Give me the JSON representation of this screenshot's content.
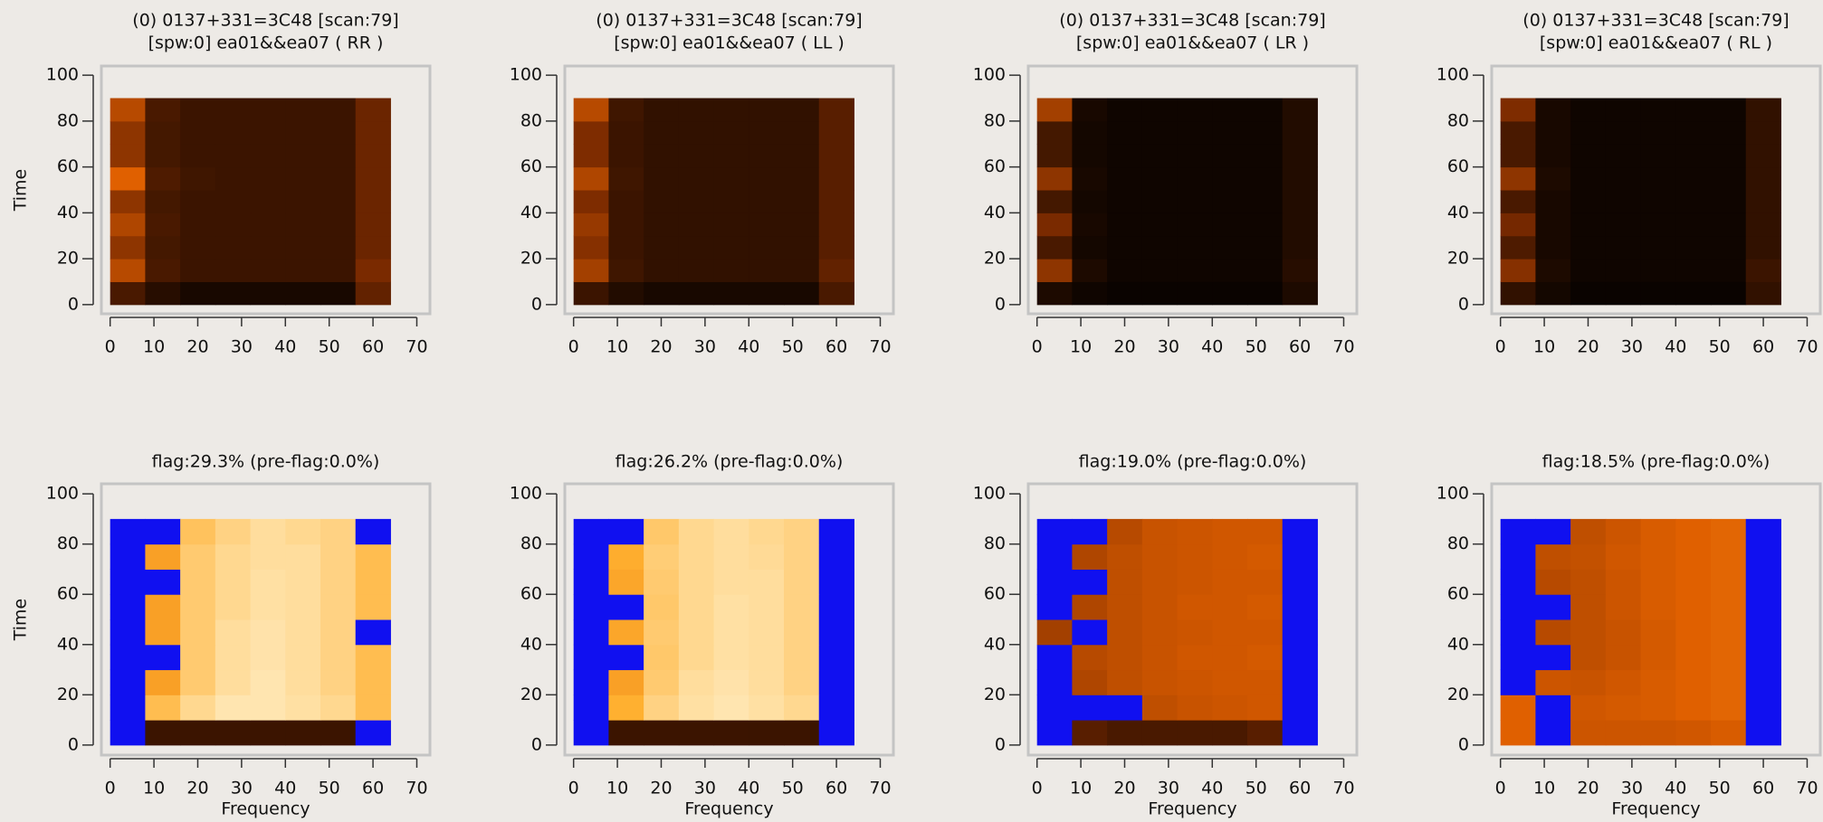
{
  "chart_data": [
    {
      "type": "heatmap",
      "title": "(0) 0137+331=3C48  [scan:79]",
      "subtitle": "[spw:0] ea01&&ea07  ( RR )",
      "ylabel": "Time",
      "xbins": [
        0,
        8,
        16,
        24,
        32,
        40,
        48,
        56,
        64
      ],
      "ybins": [
        0,
        10,
        20,
        30,
        40,
        50,
        60,
        70,
        80,
        90
      ],
      "z": [
        [
          0.15,
          0.08,
          0.05,
          0.05,
          0.05,
          0.05,
          0.05,
          0.2
        ],
        [
          0.4,
          0.15,
          0.12,
          0.12,
          0.12,
          0.12,
          0.12,
          0.25
        ],
        [
          0.3,
          0.14,
          0.12,
          0.12,
          0.12,
          0.12,
          0.12,
          0.22
        ],
        [
          0.38,
          0.15,
          0.12,
          0.12,
          0.12,
          0.12,
          0.12,
          0.22
        ],
        [
          0.3,
          0.14,
          0.12,
          0.12,
          0.12,
          0.12,
          0.12,
          0.22
        ],
        [
          0.5,
          0.16,
          0.13,
          0.12,
          0.12,
          0.12,
          0.12,
          0.22
        ],
        [
          0.3,
          0.14,
          0.12,
          0.12,
          0.12,
          0.12,
          0.12,
          0.22
        ],
        [
          0.3,
          0.14,
          0.12,
          0.12,
          0.12,
          0.12,
          0.12,
          0.22
        ],
        [
          0.4,
          0.15,
          0.12,
          0.12,
          0.12,
          0.12,
          0.12,
          0.22
        ]
      ],
      "xlim": [
        -2,
        73
      ],
      "ylim": [
        -4,
        104
      ],
      "xticks": [
        0,
        10,
        20,
        30,
        40,
        50,
        60,
        70
      ],
      "yticks": [
        0,
        20,
        40,
        60,
        80,
        100
      ]
    },
    {
      "type": "heatmap",
      "title": "(0) 0137+331=3C48  [scan:79]",
      "subtitle": "[spw:0] ea01&&ea07  ( LL )",
      "xbins": [
        0,
        8,
        16,
        24,
        32,
        40,
        48,
        56,
        64
      ],
      "ybins": [
        0,
        10,
        20,
        30,
        40,
        50,
        60,
        70,
        80,
        90
      ],
      "z": [
        [
          0.12,
          0.07,
          0.05,
          0.05,
          0.05,
          0.05,
          0.05,
          0.15
        ],
        [
          0.35,
          0.13,
          0.1,
          0.1,
          0.1,
          0.1,
          0.1,
          0.2
        ],
        [
          0.28,
          0.12,
          0.1,
          0.1,
          0.1,
          0.1,
          0.1,
          0.18
        ],
        [
          0.32,
          0.12,
          0.1,
          0.1,
          0.1,
          0.1,
          0.1,
          0.18
        ],
        [
          0.26,
          0.12,
          0.1,
          0.1,
          0.1,
          0.1,
          0.1,
          0.18
        ],
        [
          0.38,
          0.13,
          0.1,
          0.1,
          0.1,
          0.1,
          0.1,
          0.18
        ],
        [
          0.26,
          0.12,
          0.1,
          0.1,
          0.1,
          0.1,
          0.1,
          0.18
        ],
        [
          0.26,
          0.12,
          0.1,
          0.1,
          0.1,
          0.1,
          0.1,
          0.18
        ],
        [
          0.4,
          0.13,
          0.1,
          0.1,
          0.1,
          0.1,
          0.1,
          0.18
        ]
      ],
      "xlim": [
        -2,
        73
      ],
      "ylim": [
        -4,
        104
      ],
      "xticks": [
        0,
        10,
        20,
        30,
        40,
        50,
        60,
        70
      ],
      "yticks": [
        0,
        20,
        40,
        60,
        80,
        100
      ]
    },
    {
      "type": "heatmap",
      "title": "(0) 0137+331=3C48  [scan:79]",
      "subtitle": "[spw:0] ea01&&ea07  ( LR )",
      "xbins": [
        0,
        8,
        16,
        24,
        32,
        40,
        48,
        56,
        64
      ],
      "ybins": [
        0,
        10,
        20,
        30,
        40,
        50,
        60,
        70,
        80,
        90
      ],
      "z": [
        [
          0.06,
          0.03,
          0.02,
          0.02,
          0.02,
          0.02,
          0.02,
          0.06
        ],
        [
          0.3,
          0.06,
          0.03,
          0.03,
          0.03,
          0.03,
          0.03,
          0.08
        ],
        [
          0.15,
          0.04,
          0.03,
          0.03,
          0.03,
          0.03,
          0.03,
          0.07
        ],
        [
          0.25,
          0.05,
          0.03,
          0.03,
          0.03,
          0.03,
          0.03,
          0.07
        ],
        [
          0.14,
          0.04,
          0.03,
          0.03,
          0.03,
          0.03,
          0.03,
          0.07
        ],
        [
          0.3,
          0.05,
          0.03,
          0.03,
          0.03,
          0.03,
          0.03,
          0.07
        ],
        [
          0.14,
          0.04,
          0.03,
          0.03,
          0.03,
          0.03,
          0.03,
          0.07
        ],
        [
          0.14,
          0.04,
          0.03,
          0.03,
          0.03,
          0.03,
          0.03,
          0.07
        ],
        [
          0.35,
          0.05,
          0.03,
          0.03,
          0.03,
          0.03,
          0.03,
          0.07
        ]
      ],
      "xlim": [
        -2,
        73
      ],
      "ylim": [
        -4,
        104
      ],
      "xticks": [
        0,
        10,
        20,
        30,
        40,
        50,
        60,
        70
      ],
      "yticks": [
        0,
        20,
        40,
        60,
        80,
        100
      ]
    },
    {
      "type": "heatmap",
      "title": "(0) 0137+331=3C48  [scan:79]",
      "subtitle": "[spw:0] ea01&&ea07  ( RL )",
      "xbins": [
        0,
        8,
        16,
        24,
        32,
        40,
        48,
        56,
        64
      ],
      "ybins": [
        0,
        10,
        20,
        30,
        40,
        50,
        60,
        70,
        80,
        90
      ],
      "z": [
        [
          0.1,
          0.04,
          0.02,
          0.02,
          0.02,
          0.02,
          0.02,
          0.1
        ],
        [
          0.28,
          0.06,
          0.03,
          0.03,
          0.03,
          0.03,
          0.03,
          0.12
        ],
        [
          0.16,
          0.05,
          0.03,
          0.03,
          0.03,
          0.03,
          0.03,
          0.1
        ],
        [
          0.24,
          0.05,
          0.03,
          0.03,
          0.03,
          0.03,
          0.03,
          0.1
        ],
        [
          0.15,
          0.05,
          0.03,
          0.03,
          0.03,
          0.03,
          0.03,
          0.1
        ],
        [
          0.3,
          0.06,
          0.03,
          0.03,
          0.03,
          0.03,
          0.03,
          0.1
        ],
        [
          0.15,
          0.05,
          0.03,
          0.03,
          0.03,
          0.03,
          0.03,
          0.1
        ],
        [
          0.15,
          0.05,
          0.03,
          0.03,
          0.03,
          0.03,
          0.03,
          0.1
        ],
        [
          0.26,
          0.05,
          0.03,
          0.03,
          0.03,
          0.03,
          0.03,
          0.1
        ]
      ],
      "xlim": [
        -2,
        73
      ],
      "ylim": [
        -4,
        104
      ],
      "xticks": [
        0,
        10,
        20,
        30,
        40,
        50,
        60,
        70
      ],
      "yticks": [
        0,
        20,
        40,
        60,
        80,
        100
      ]
    },
    {
      "type": "heatmap",
      "title": "flag:29.3% (pre-flag:0.0%)",
      "ylabel": "Time",
      "xlabel": "Frequency",
      "xbins": [
        0,
        8,
        16,
        24,
        32,
        40,
        48,
        56,
        64
      ],
      "ybins": [
        0,
        10,
        20,
        30,
        40,
        50,
        60,
        70,
        80,
        90
      ],
      "z": [
        [
          null,
          0.12,
          0.12,
          0.12,
          0.12,
          0.12,
          0.12,
          null
        ],
        [
          null,
          0.8,
          0.9,
          0.95,
          0.95,
          0.93,
          0.9,
          0.8
        ],
        [
          null,
          0.7,
          0.85,
          0.92,
          0.95,
          0.92,
          0.88,
          0.8
        ],
        [
          null,
          null,
          0.85,
          0.92,
          0.94,
          0.92,
          0.88,
          0.8
        ],
        [
          null,
          0.7,
          0.85,
          0.92,
          0.94,
          0.92,
          0.88,
          null
        ],
        [
          null,
          0.7,
          0.85,
          0.9,
          0.93,
          0.92,
          0.88,
          0.8
        ],
        [
          null,
          null,
          0.85,
          0.9,
          0.93,
          0.92,
          0.88,
          0.8
        ],
        [
          null,
          0.7,
          0.85,
          0.9,
          0.92,
          0.92,
          0.88,
          0.8
        ],
        [
          null,
          null,
          0.82,
          0.88,
          0.92,
          0.9,
          0.88,
          null
        ]
      ],
      "xlim": [
        -2,
        73
      ],
      "ylim": [
        -4,
        104
      ],
      "xticks": [
        0,
        10,
        20,
        30,
        40,
        50,
        60,
        70
      ],
      "yticks": [
        0,
        20,
        40,
        60,
        80,
        100
      ]
    },
    {
      "type": "heatmap",
      "title": "flag:26.2% (pre-flag:0.0%)",
      "xlabel": "Frequency",
      "xbins": [
        0,
        8,
        16,
        24,
        32,
        40,
        48,
        56,
        64
      ],
      "ybins": [
        0,
        10,
        20,
        30,
        40,
        50,
        60,
        70,
        80,
        90
      ],
      "z": [
        [
          null,
          0.12,
          0.12,
          0.12,
          0.12,
          0.12,
          0.12,
          null
        ],
        [
          null,
          0.75,
          0.88,
          0.93,
          0.95,
          0.93,
          0.9,
          null
        ],
        [
          null,
          0.7,
          0.85,
          0.92,
          0.94,
          0.92,
          0.88,
          null
        ],
        [
          null,
          null,
          0.84,
          0.9,
          0.93,
          0.92,
          0.88,
          null
        ],
        [
          null,
          0.72,
          0.85,
          0.9,
          0.93,
          0.92,
          0.88,
          null
        ],
        [
          null,
          null,
          0.84,
          0.9,
          0.93,
          0.92,
          0.88,
          null
        ],
        [
          null,
          0.72,
          0.85,
          0.9,
          0.92,
          0.92,
          0.88,
          null
        ],
        [
          null,
          0.74,
          0.86,
          0.9,
          0.92,
          0.91,
          0.88,
          null
        ],
        [
          null,
          null,
          0.84,
          0.9,
          0.92,
          0.9,
          0.88,
          null
        ]
      ],
      "xlim": [
        -2,
        73
      ],
      "ylim": [
        -4,
        104
      ],
      "xticks": [
        0,
        10,
        20,
        30,
        40,
        50,
        60,
        70
      ],
      "yticks": [
        0,
        20,
        40,
        60,
        80,
        100
      ]
    },
    {
      "type": "heatmap",
      "title": "flag:19.0% (pre-flag:0.0%)",
      "xlabel": "Frequency",
      "xbins": [
        0,
        8,
        16,
        24,
        32,
        40,
        48,
        56,
        64
      ],
      "ybins": [
        0,
        10,
        20,
        30,
        40,
        50,
        60,
        70,
        80,
        90
      ],
      "z": [
        [
          null,
          0.18,
          0.15,
          0.15,
          0.15,
          0.15,
          0.18,
          null
        ],
        [
          null,
          null,
          null,
          0.42,
          0.44,
          0.45,
          0.46,
          null
        ],
        [
          null,
          0.38,
          0.42,
          0.44,
          0.45,
          0.46,
          0.46,
          null
        ],
        [
          null,
          0.4,
          0.42,
          0.44,
          0.46,
          0.46,
          0.47,
          null
        ],
        [
          0.35,
          null,
          0.42,
          0.44,
          0.45,
          0.46,
          0.46,
          null
        ],
        [
          null,
          0.38,
          0.42,
          0.44,
          0.46,
          0.46,
          0.47,
          null
        ],
        [
          null,
          null,
          0.42,
          0.44,
          0.45,
          0.46,
          0.46,
          null
        ],
        [
          null,
          0.38,
          0.42,
          0.44,
          0.45,
          0.46,
          0.47,
          null
        ],
        [
          null,
          null,
          0.4,
          0.44,
          0.45,
          0.46,
          0.46,
          null
        ]
      ],
      "xlim": [
        -2,
        73
      ],
      "ylim": [
        -4,
        104
      ],
      "xticks": [
        0,
        10,
        20,
        30,
        40,
        50,
        60,
        70
      ],
      "yticks": [
        0,
        20,
        40,
        60,
        80,
        100
      ]
    },
    {
      "type": "heatmap",
      "title": "flag:18.5% (pre-flag:0.0%)",
      "xlabel": "Frequency",
      "xbins": [
        0,
        8,
        16,
        24,
        32,
        40,
        48,
        56,
        64
      ],
      "ybins": [
        0,
        10,
        20,
        30,
        40,
        50,
        60,
        70,
        80,
        90
      ],
      "z": [
        [
          0.5,
          null,
          0.45,
          0.45,
          0.45,
          0.46,
          0.48,
          null
        ],
        [
          0.5,
          null,
          0.46,
          0.47,
          0.48,
          0.5,
          0.52,
          null
        ],
        [
          null,
          0.45,
          0.44,
          0.46,
          0.48,
          0.5,
          0.52,
          null
        ],
        [
          null,
          null,
          0.42,
          0.44,
          0.47,
          0.5,
          0.52,
          null
        ],
        [
          null,
          0.4,
          0.42,
          0.44,
          0.47,
          0.5,
          0.52,
          null
        ],
        [
          null,
          null,
          0.42,
          0.45,
          0.48,
          0.5,
          0.52,
          null
        ],
        [
          null,
          0.4,
          0.42,
          0.45,
          0.48,
          0.5,
          0.52,
          null
        ],
        [
          null,
          0.42,
          0.43,
          0.46,
          0.48,
          0.5,
          0.52,
          null
        ],
        [
          null,
          null,
          0.42,
          0.45,
          0.48,
          0.5,
          0.52,
          null
        ]
      ],
      "xlim": [
        -2,
        73
      ],
      "ylim": [
        -4,
        104
      ],
      "xticks": [
        0,
        10,
        20,
        30,
        40,
        50,
        60,
        70
      ],
      "yticks": [
        0,
        20,
        40,
        60,
        80,
        100
      ]
    }
  ],
  "colormap": [
    "#000000",
    "#7a2a00",
    "#e06000",
    "#ffb030",
    "#fff2d0"
  ],
  "flag_color": "#1010f0"
}
